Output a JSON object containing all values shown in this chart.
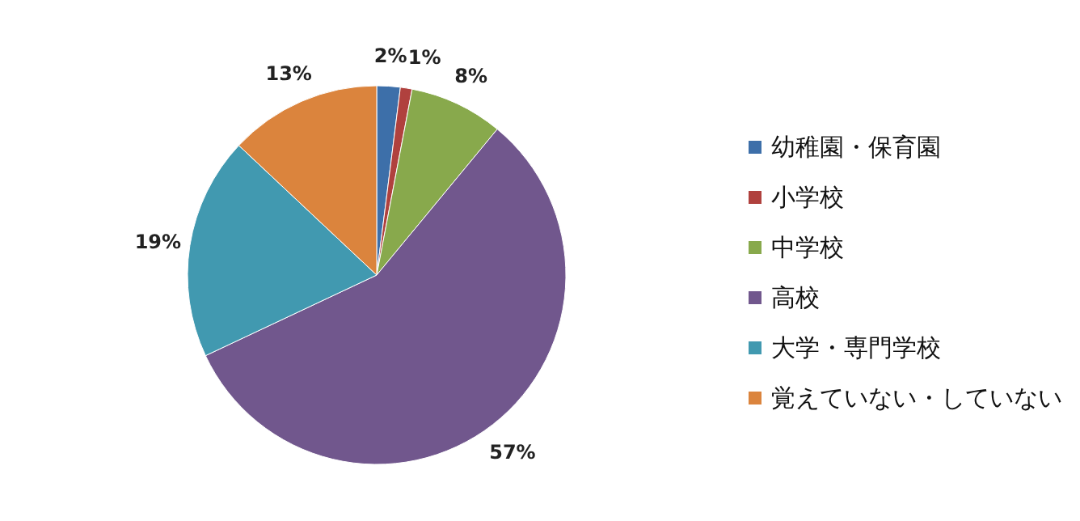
{
  "chart_data": {
    "type": "pie",
    "categories": [
      "幼稚園・保育園",
      "小学校",
      "中学校",
      "高校",
      "大学・専門学校",
      "覚えていない・していない"
    ],
    "values": [
      2,
      1,
      8,
      57,
      19,
      13
    ],
    "colors": [
      "#3d6fa9",
      "#b0413e",
      "#88a94c",
      "#71578d",
      "#4199b0",
      "#db843d"
    ],
    "value_labels": [
      "2%",
      "1%",
      "8%",
      "57%",
      "19%",
      "13%"
    ],
    "legend": "right"
  }
}
